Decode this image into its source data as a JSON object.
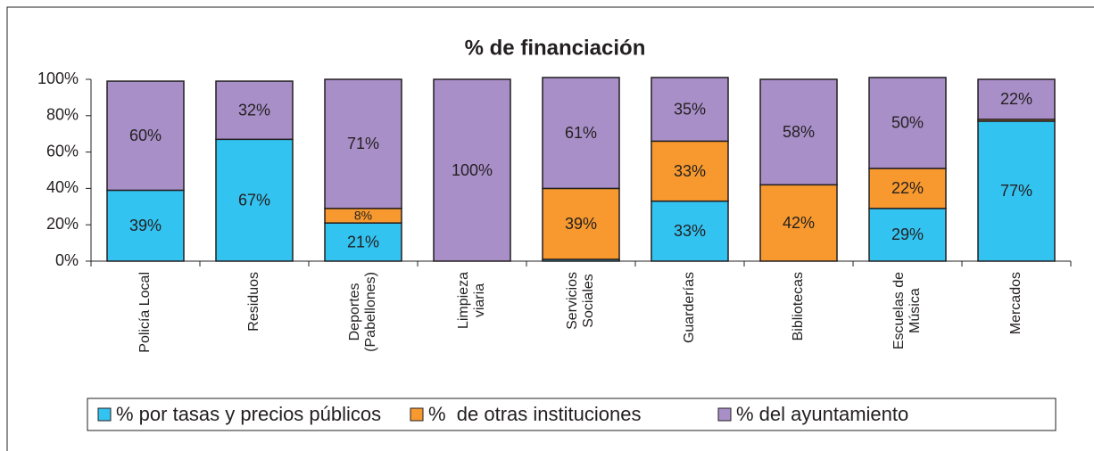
{
  "chart_data": {
    "type": "stacked_bar",
    "title": "% de financiación",
    "categories": [
      "Policía Local",
      "Residuos",
      "Deportes\n(Pabellones)",
      "Limpieza\nviaria",
      "Servicios\nSociales",
      "Guarderías",
      "Bibliotecas",
      "Escuelas de\nMúsica",
      "Mercados"
    ],
    "series": [
      {
        "name": "% por tasas y precios públicos",
        "color": "#33c3f0",
        "values": [
          39,
          67,
          21,
          0,
          1,
          33,
          0,
          29,
          77
        ],
        "value_labels": [
          "39%",
          "67%",
          "21%",
          null,
          null,
          "33%",
          null,
          "29%",
          "77%"
        ]
      },
      {
        "name": "%  de otras instituciones",
        "color": "#f7992e",
        "values": [
          0,
          0,
          8,
          0,
          39,
          33,
          42,
          22,
          1
        ],
        "value_labels": [
          null,
          null,
          "8%",
          null,
          "39%",
          "33%",
          "42%",
          "22%",
          null
        ]
      },
      {
        "name": "% del ayuntamiento",
        "color": "#a98fc8",
        "values": [
          60,
          32,
          71,
          100,
          61,
          35,
          58,
          50,
          22
        ],
        "value_labels": [
          "60%",
          "32%",
          "71%",
          "100%",
          "61%",
          "35%",
          "58%",
          "50%",
          "22%"
        ]
      }
    ],
    "ylim": [
      0,
      100
    ],
    "yticks": [
      {
        "value": 0,
        "label": "0%"
      },
      {
        "value": 20,
        "label": "20%"
      },
      {
        "value": 40,
        "label": "40%"
      },
      {
        "value": 60,
        "label": "60%"
      },
      {
        "value": 80,
        "label": "80%"
      },
      {
        "value": 100,
        "label": "100%"
      }
    ],
    "grid": false,
    "legend": "bottom"
  }
}
